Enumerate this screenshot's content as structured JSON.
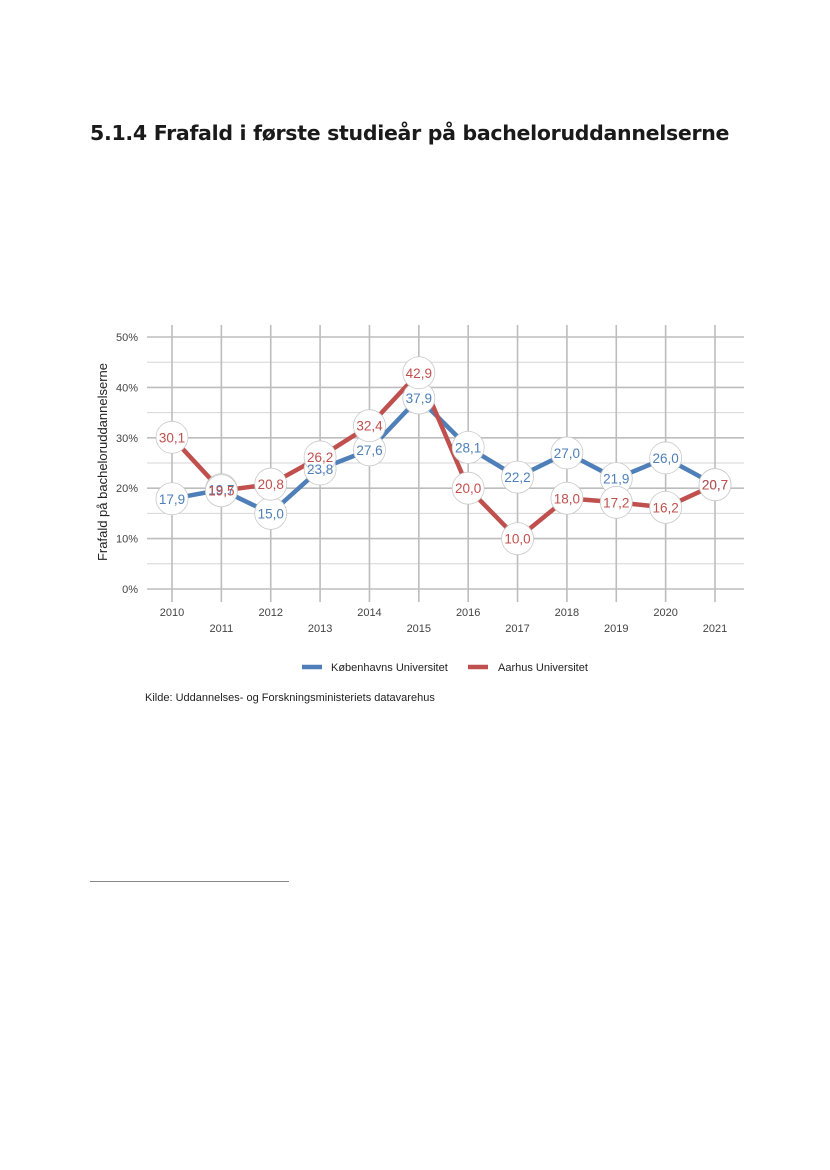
{
  "page": {
    "heading": "5.1.4 Frafald i første studieår på bacheloruddannelserne",
    "source": "Kilde: Uddannelses- og Forskningsministeriets datavarehus"
  },
  "chart_data": {
    "type": "line",
    "title": "",
    "xlabel": "",
    "ylabel": "Frafald på bacheloruddannelserne",
    "x": [
      2010,
      2011,
      2012,
      2013,
      2014,
      2015,
      2016,
      2017,
      2018,
      2019,
      2020,
      2021
    ],
    "ylim": [
      0,
      50
    ],
    "yticks": [
      0,
      10,
      20,
      30,
      40,
      50
    ],
    "ytick_labels": [
      "0%",
      "10%",
      "20%",
      "30%",
      "40%",
      "50%"
    ],
    "grid": true,
    "legend_position": "bottom",
    "series": [
      {
        "name": "Københavns Universitet",
        "color": "#4e7fb8",
        "values": [
          17.9,
          19.7,
          15.0,
          23.8,
          27.6,
          37.9,
          28.1,
          22.2,
          27.0,
          21.9,
          26.0,
          20.7
        ],
        "labels": [
          "17,9",
          "19,7",
          "15,0",
          "23,8",
          "27,6",
          "37,9",
          "28,1",
          "22,2",
          "27,0",
          "21,9",
          "26,0",
          "20,7"
        ]
      },
      {
        "name": "Aarhus Universitet",
        "color": "#c0504d",
        "values": [
          30.1,
          19.5,
          20.8,
          26.2,
          32.4,
          42.9,
          20.0,
          10.0,
          18.0,
          17.2,
          16.2,
          20.7
        ],
        "labels": [
          "30,1",
          "19,5",
          "20,8",
          "26,2",
          "32,4",
          "42,9",
          "20,0",
          "10,0",
          "18,0",
          "17,2",
          "16,2",
          "20,7"
        ]
      }
    ]
  }
}
